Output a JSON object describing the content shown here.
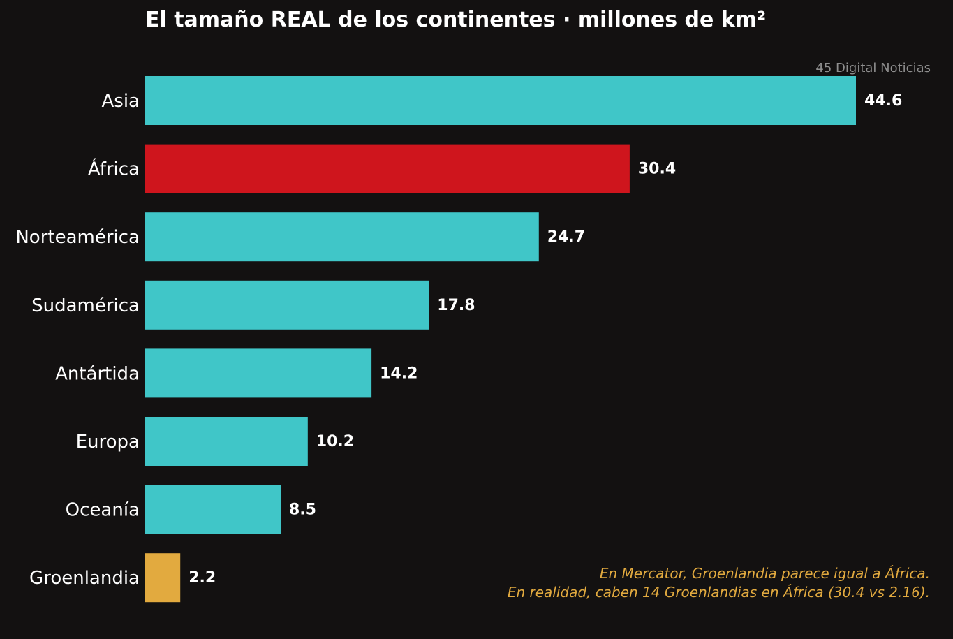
{
  "chart_data": {
    "type": "bar",
    "orientation": "horizontal",
    "title": "El tamaño REAL de los continentes  ·  millones de km²",
    "source": "45 Digital Noticias",
    "categories": [
      "Asia",
      "África",
      "Norteamérica",
      "Sudamérica",
      "Antártida",
      "Europa",
      "Oceanía",
      "Groenlandia"
    ],
    "values": [
      44.6,
      30.4,
      24.7,
      17.8,
      14.2,
      10.2,
      8.5,
      2.2
    ],
    "value_labels": [
      "44.6",
      "30.4",
      "24.7",
      "17.8",
      "14.2",
      "10.2",
      "8.5",
      "2.2"
    ],
    "bar_colors": [
      "#40c6c8",
      "#cf151d",
      "#40c6c8",
      "#40c6c8",
      "#40c6c8",
      "#40c6c8",
      "#40c6c8",
      "#e2aa3f"
    ],
    "xlim": [
      0,
      44.6
    ],
    "grid": false,
    "annotation": {
      "lines": [
        "En Mercator, Groenlandia parece igual a África.",
        "En realidad, caben 14 Groenlandias en África (30.4 vs 2.16)."
      ],
      "color": "#e2aa3f",
      "placement": "bottom-right"
    }
  },
  "colors": {
    "background": "#131111",
    "text": "#ffffff",
    "muted": "#8e8e8e"
  }
}
